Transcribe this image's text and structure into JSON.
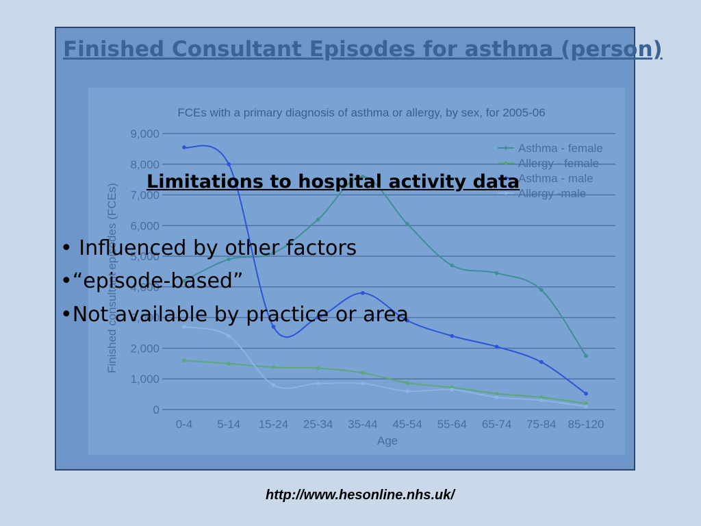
{
  "slide": {
    "title": "Finished Consultant Episodes for asthma (person)",
    "overlay_heading": "Limitations to hospital activity data",
    "bullets": [
      "• Influenced by other factors",
      "•“episode-based”",
      "•Not available by practice or area"
    ],
    "source_url": "http://www.hesonline.nhs.uk/"
  },
  "colors": {
    "panel_bg": "#6f96c9",
    "page_bg": "#c9d9ea",
    "chart_bg": "#7aa2d2",
    "asthma_female": "#3f8f96",
    "allergy_female": "#5aa878",
    "asthma_male": "#2a55d8",
    "allergy_male": "#8ab4ea"
  },
  "chart_data": {
    "type": "line",
    "title": "FCEs with a primary diagnosis of asthma or allergy, by sex, for 2005-06",
    "xlabel": "Age",
    "ylabel": "Finished consultant episodes (FCEs)",
    "categories": [
      "0-4",
      "5-14",
      "15-24",
      "25-34",
      "35-44",
      "45-54",
      "55-64",
      "65-74",
      "75-84",
      "85-120"
    ],
    "ylim": [
      0,
      9000
    ],
    "yticks": [
      0,
      1000,
      2000,
      3000,
      4000,
      5000,
      6000,
      7000,
      8000,
      9000
    ],
    "ytick_labels": [
      "0",
      "1,000",
      "2,000",
      "3,000",
      "4,000",
      "5,000",
      "6,000",
      "7,000",
      "8,000",
      "9,000"
    ],
    "grid": true,
    "legend": "top-right",
    "series": [
      {
        "name": "Asthma - female",
        "color_key": "asthma_female",
        "values": [
          4200,
          4900,
          5100,
          6200,
          7600,
          6050,
          4700,
          4450,
          3900,
          1750
        ]
      },
      {
        "name": "Allergy - female",
        "color_key": "allergy_female",
        "values": [
          1600,
          1500,
          1380,
          1350,
          1200,
          870,
          720,
          520,
          400,
          200
        ]
      },
      {
        "name": "Asthma - male",
        "color_key": "asthma_male",
        "values": [
          8550,
          8000,
          2700,
          3000,
          3800,
          2900,
          2400,
          2050,
          1550,
          520
        ]
      },
      {
        "name": "Allergy -male",
        "color_key": "allergy_male",
        "values": [
          2700,
          2400,
          800,
          850,
          850,
          600,
          650,
          400,
          300,
          100
        ]
      }
    ]
  }
}
